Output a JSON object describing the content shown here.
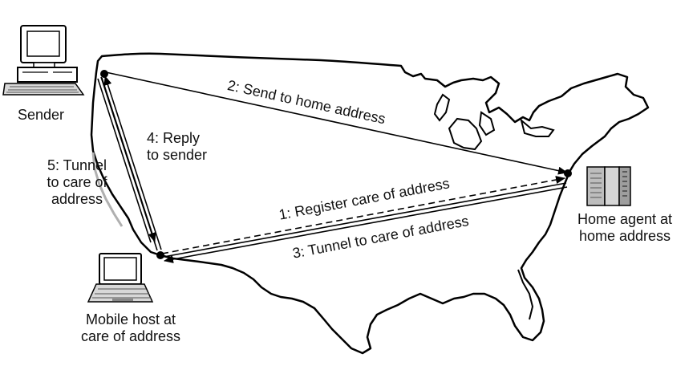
{
  "nodes": {
    "sender": "Sender",
    "mobile_host": [
      "Mobile host at",
      "care of address"
    ],
    "home_agent": [
      "Home agent at",
      "home address"
    ]
  },
  "steps": {
    "register": "1: Register care of address",
    "send": "2: Send to home address",
    "tunnel": "3: Tunnel to care of address",
    "reply": [
      "4: Reply",
      "to sender"
    ],
    "tunnel_back": [
      "5: Tunnel",
      "to care of",
      "address"
    ]
  },
  "icons": {
    "sender": "desktop-computer-icon",
    "mobile_host": "laptop-icon",
    "home_agent": "server-rack-icon"
  }
}
